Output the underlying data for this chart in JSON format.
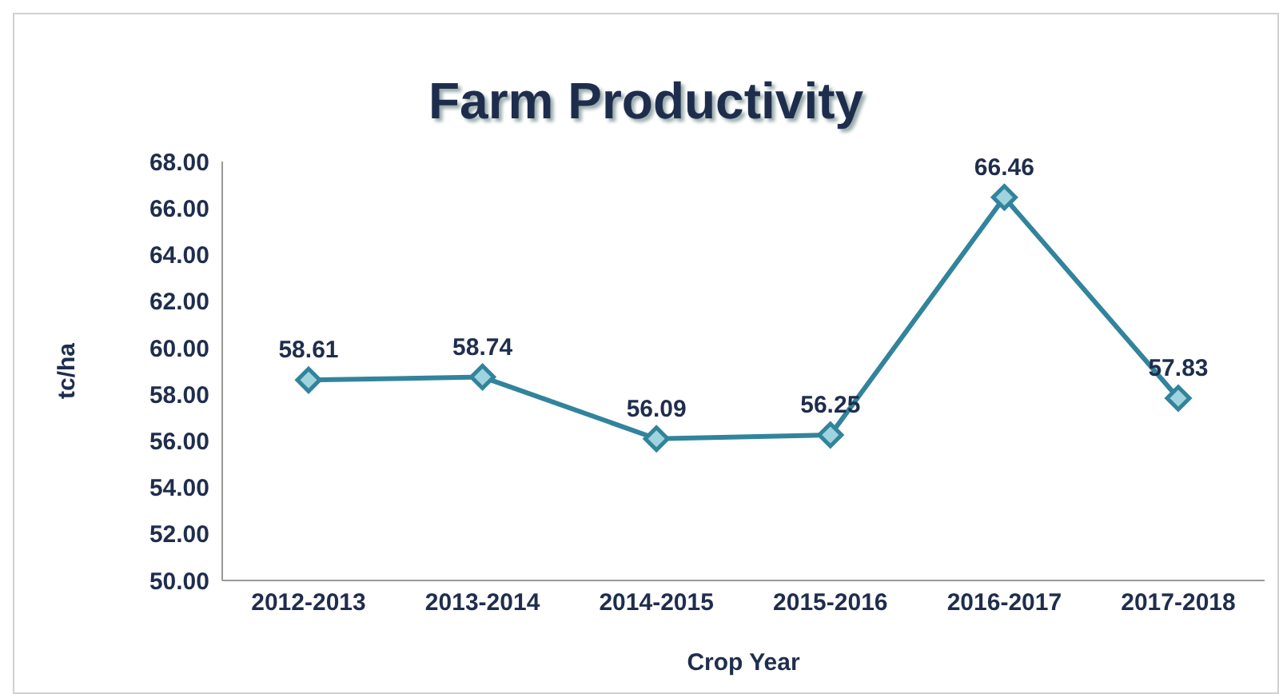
{
  "chart_data": {
    "type": "line",
    "title": "Farm Productivity",
    "xlabel": "Crop Year",
    "ylabel": "tc/ha",
    "categories": [
      "2012-2013",
      "2013-2014",
      "2014-2015",
      "2015-2016",
      "2016-2017",
      "2017-2018"
    ],
    "series": [
      {
        "color": "#31849b",
        "values": [
          58.61,
          58.74,
          56.09,
          56.25,
          66.46,
          57.83
        ]
      }
    ],
    "ylim": [
      50,
      68
    ],
    "yticks": [
      {
        "value": 50,
        "label": "50.00"
      },
      {
        "value": 52,
        "label": "52.00"
      },
      {
        "value": 54,
        "label": "54.00"
      },
      {
        "value": 56,
        "label": "56.00"
      },
      {
        "value": 58,
        "label": "58.00"
      },
      {
        "value": 60,
        "label": "60.00"
      },
      {
        "value": 62,
        "label": "62.00"
      },
      {
        "value": 64,
        "label": "64.00"
      },
      {
        "value": 66,
        "label": "66.00"
      },
      {
        "value": 68,
        "label": "68.00"
      }
    ],
    "grid": false,
    "legend": false,
    "marker": "diamond",
    "line_style": "solid",
    "data_labels": true
  }
}
